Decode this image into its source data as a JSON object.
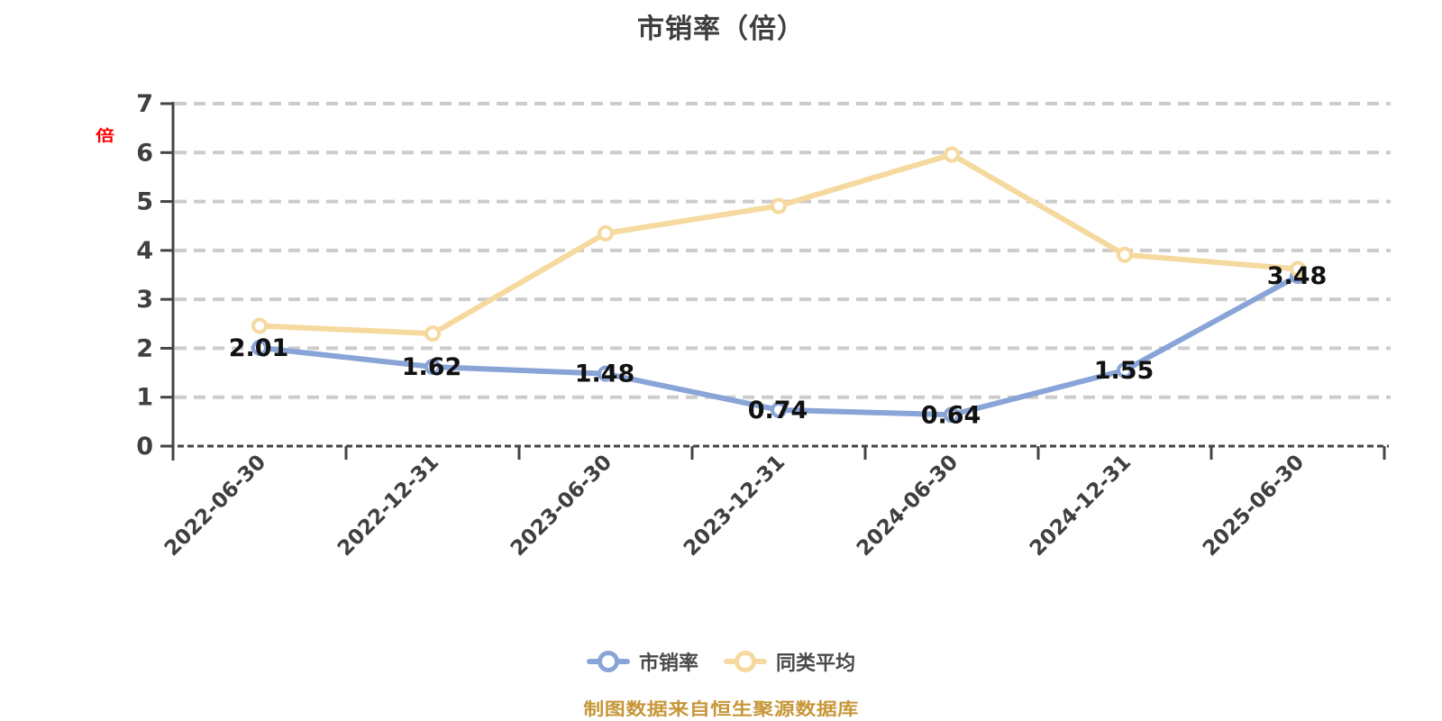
{
  "title": "市销率（倍）",
  "y_axis_unit": "倍",
  "source_note": "制图数据来自恒生聚源数据库",
  "colors": {
    "series1": "#89a4d6",
    "series2": "#f5d99e",
    "axis": "#444444",
    "grid": "#cccccc",
    "data_label": "#111111",
    "tick_text": "#3f3f3f",
    "title_text": "#3d3d3d",
    "unit_text": "#ff0000",
    "source_text": "#c69637",
    "legend_text": "#4a4a4a"
  },
  "chart_data": {
    "type": "line",
    "title": "市销率（倍）",
    "categories": [
      "2022-06-30",
      "2022-12-31",
      "2023-06-30",
      "2023-12-31",
      "2024-06-30",
      "2024-12-31",
      "2025-06-30"
    ],
    "series": [
      {
        "name": "市销率",
        "color": "#89a4d6",
        "values": [
          2.01,
          1.62,
          1.48,
          0.74,
          0.64,
          1.55,
          3.48
        ],
        "show_labels": true
      },
      {
        "name": "同类平均",
        "color": "#f5d99e",
        "values": [
          2.46,
          2.3,
          4.35,
          4.91,
          5.96,
          3.91,
          3.62
        ],
        "show_labels": false
      }
    ],
    "ylim": [
      0,
      7
    ],
    "y_ticks": [
      0,
      1,
      2,
      3,
      4,
      5,
      6,
      7
    ],
    "grid": "horizontal-dashed",
    "x_label_rotate": 45,
    "legend_position": "bottom"
  },
  "legend": {
    "items": [
      {
        "label": "市销率",
        "color": "#89a4d6"
      },
      {
        "label": "同类平均",
        "color": "#f5d99e"
      }
    ]
  }
}
